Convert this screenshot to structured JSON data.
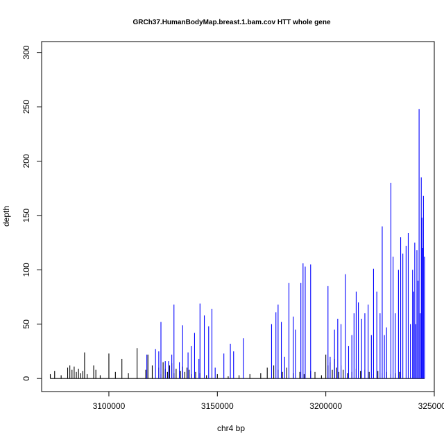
{
  "chart_data": {
    "type": "bar",
    "title": "GRCh37.HumanBodyMap.breast.1.bam.cov HTT whole gene",
    "xlabel": "chr4 bp",
    "ylabel": "depth",
    "xlim": [
      3069000,
      3250000
    ],
    "ylim": [
      -12,
      310
    ],
    "xticks": [
      3100000,
      3150000,
      3200000,
      3250000
    ],
    "xtick_labels": [
      "3100000",
      "3150000",
      "3200000",
      "3250000"
    ],
    "yticks": [
      0,
      50,
      100,
      150,
      200,
      250,
      300
    ],
    "ytick_labels": [
      "0",
      "50",
      "100",
      "150",
      "200",
      "250",
      "300"
    ],
    "grid": false,
    "legend": "none",
    "series": [
      {
        "color": "#000000",
        "x": [
          3073000,
          3075000,
          3078000,
          3081000,
          3082000,
          3083000,
          3084000,
          3085000,
          3086000,
          3087000,
          3088000,
          3088800,
          3090000,
          3093000,
          3094000,
          3096000,
          3100000,
          3103000,
          3106000,
          3109000,
          3113000,
          3117000,
          3118000,
          3120000,
          3123000,
          3124000,
          3125000,
          3126000,
          3127000,
          3128000,
          3129000,
          3130000,
          3131000,
          3133000,
          3134000,
          3135000,
          3136000,
          3137000,
          3138000,
          3140000,
          3142000,
          3145000,
          3150000,
          3155000,
          3160000,
          3165000,
          3170000,
          3173000,
          3176000,
          3178000,
          3180000,
          3182000,
          3185000,
          3188000,
          3190000,
          3193000,
          3195000,
          3198000,
          3200000,
          3201000,
          3202000,
          3203000,
          3204000,
          3205000,
          3206000,
          3207000,
          3208000,
          3210000,
          3212000,
          3214000,
          3216000,
          3218000,
          3220000,
          3222000,
          3224000,
          3226000,
          3228000,
          3230000,
          3232000,
          3234000
        ],
        "y": [
          4,
          7,
          3,
          10,
          12,
          8,
          11,
          6,
          9,
          5,
          7,
          24,
          4,
          12,
          8,
          3,
          23,
          6,
          18,
          5,
          28,
          8,
          22,
          12,
          10,
          4,
          15,
          9,
          6,
          12,
          14,
          5,
          9,
          7,
          11,
          6,
          10,
          8,
          4,
          6,
          5,
          3,
          4,
          2,
          3,
          4,
          5,
          10,
          12,
          8,
          6,
          10,
          5,
          6,
          4,
          7,
          6,
          3,
          22,
          12,
          15,
          8,
          18,
          10,
          6,
          12,
          8,
          5,
          6,
          9,
          7,
          8,
          6,
          4,
          7,
          5,
          6,
          4,
          5,
          6
        ]
      },
      {
        "color": "#0000ff",
        "x": [
          3117500,
          3121500,
          3123000,
          3124000,
          3126000,
          3127500,
          3129000,
          3130000,
          3132500,
          3134000,
          3136500,
          3138000,
          3139500,
          3141500,
          3142000,
          3144000,
          3146000,
          3147500,
          3149000,
          3153000,
          3156000,
          3157500,
          3162000,
          3175000,
          3177000,
          3178000,
          3179500,
          3181000,
          3183000,
          3185000,
          3186000,
          3188500,
          3189500,
          3190500,
          3193000,
          3201000,
          3202000,
          3204000,
          3205500,
          3207000,
          3209000,
          3210500,
          3212000,
          3213000,
          3214000,
          3215000,
          3216500,
          3218000,
          3219500,
          3221000,
          3222000,
          3223500,
          3225000,
          3226000,
          3227000,
          3228000,
          3230000,
          3231000,
          3232000,
          3233500,
          3234500,
          3235500,
          3237000,
          3238000,
          3239000,
          3240000,
          3240500,
          3241000,
          3241500,
          3242000,
          3242500,
          3243000,
          3243500,
          3244000,
          3244300,
          3244600,
          3245000,
          3245500
        ],
        "y": [
          22,
          27,
          25,
          52,
          16,
          16,
          22,
          68,
          15,
          49,
          24,
          30,
          42,
          18,
          69,
          58,
          48,
          64,
          10,
          23,
          32,
          25,
          37,
          50,
          61,
          68,
          52,
          20,
          88,
          57,
          45,
          88,
          106,
          103,
          105,
          85,
          20,
          45,
          55,
          50,
          96,
          30,
          40,
          60,
          80,
          70,
          55,
          60,
          68,
          40,
          101,
          80,
          60,
          140,
          40,
          47,
          180,
          112,
          60,
          100,
          130,
          115,
          122,
          134,
          50,
          100,
          80,
          125,
          50,
          118,
          90,
          248,
          60,
          185,
          148,
          120,
          168,
          112
        ]
      }
    ]
  }
}
